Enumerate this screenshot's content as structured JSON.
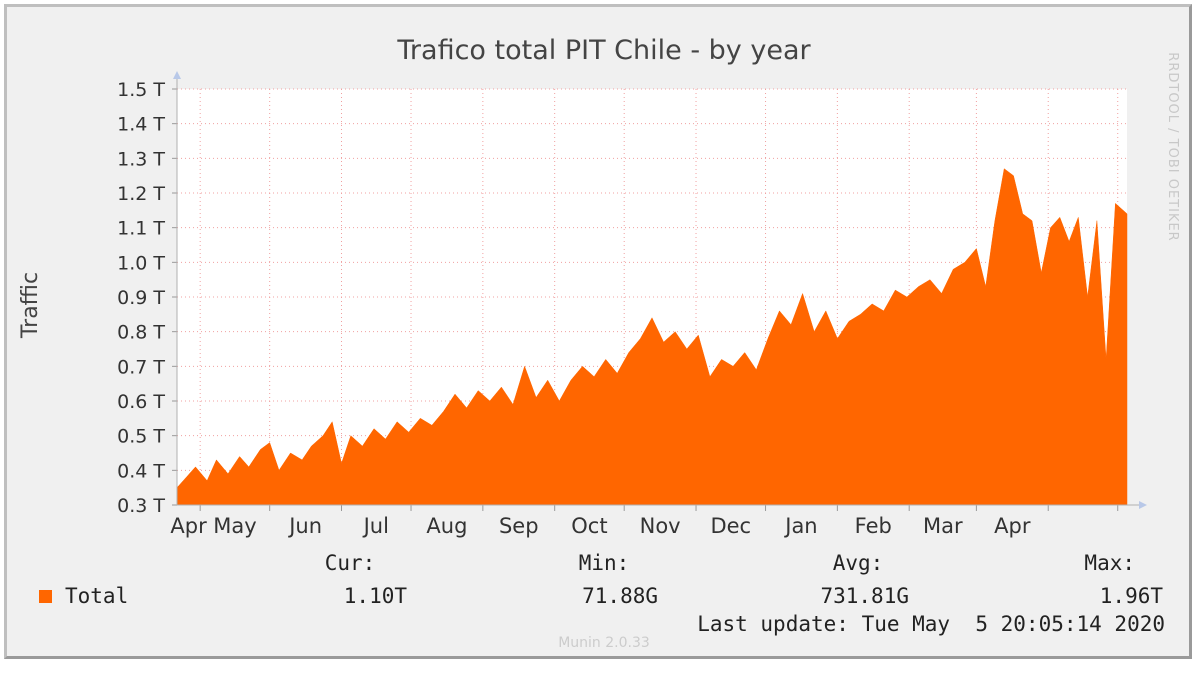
{
  "chart_data": {
    "type": "area",
    "title": "Trafico total PIT Chile - by year",
    "ylabel": "Traffic",
    "ylim": [
      0.3,
      1.5
    ],
    "y_unit": "T",
    "y_ticks": [
      "0.3 T",
      "0.4 T",
      "0.5 T",
      "0.6 T",
      "0.7 T",
      "0.8 T",
      "0.9 T",
      "1.0 T",
      "1.1 T",
      "1.2 T",
      "1.3 T",
      "1.4 T",
      "1.5 T"
    ],
    "y_tick_values": [
      0.3,
      0.4,
      0.5,
      0.6,
      0.7,
      0.8,
      0.9,
      1.0,
      1.1,
      1.2,
      1.3,
      1.4,
      1.5
    ],
    "x_ticks": [
      "Apr",
      "May",
      "Jun",
      "Jul",
      "Aug",
      "Sep",
      "Oct",
      "Nov",
      "Dec",
      "Jan",
      "Feb",
      "Mar",
      "Apr"
    ],
    "x_start": "2019-03-22",
    "x_end": "2020-05-05",
    "grid": true,
    "series": [
      {
        "name": "Total",
        "color": "#ff6600",
        "points": [
          [
            "2019-03-22",
            0.35
          ],
          [
            "2019-03-26",
            0.38
          ],
          [
            "2019-03-30",
            0.41
          ],
          [
            "2019-04-04",
            0.37
          ],
          [
            "2019-04-08",
            0.43
          ],
          [
            "2019-04-13",
            0.39
          ],
          [
            "2019-04-18",
            0.44
          ],
          [
            "2019-04-22",
            0.41
          ],
          [
            "2019-04-27",
            0.46
          ],
          [
            "2019-05-01",
            0.48
          ],
          [
            "2019-05-05",
            0.4
          ],
          [
            "2019-05-10",
            0.45
          ],
          [
            "2019-05-15",
            0.43
          ],
          [
            "2019-05-19",
            0.47
          ],
          [
            "2019-05-24",
            0.5
          ],
          [
            "2019-05-28",
            0.54
          ],
          [
            "2019-06-01",
            0.42
          ],
          [
            "2019-06-05",
            0.5
          ],
          [
            "2019-06-10",
            0.47
          ],
          [
            "2019-06-15",
            0.52
          ],
          [
            "2019-06-20",
            0.49
          ],
          [
            "2019-06-25",
            0.54
          ],
          [
            "2019-06-30",
            0.51
          ],
          [
            "2019-07-05",
            0.55
          ],
          [
            "2019-07-10",
            0.53
          ],
          [
            "2019-07-15",
            0.57
          ],
          [
            "2019-07-20",
            0.62
          ],
          [
            "2019-07-25",
            0.58
          ],
          [
            "2019-07-30",
            0.63
          ],
          [
            "2019-08-04",
            0.6
          ],
          [
            "2019-08-09",
            0.64
          ],
          [
            "2019-08-14",
            0.59
          ],
          [
            "2019-08-19",
            0.7
          ],
          [
            "2019-08-24",
            0.61
          ],
          [
            "2019-08-29",
            0.66
          ],
          [
            "2019-09-03",
            0.6
          ],
          [
            "2019-09-08",
            0.66
          ],
          [
            "2019-09-13",
            0.7
          ],
          [
            "2019-09-18",
            0.67
          ],
          [
            "2019-09-23",
            0.72
          ],
          [
            "2019-09-28",
            0.68
          ],
          [
            "2019-10-03",
            0.74
          ],
          [
            "2019-10-08",
            0.78
          ],
          [
            "2019-10-13",
            0.84
          ],
          [
            "2019-10-18",
            0.77
          ],
          [
            "2019-10-23",
            0.8
          ],
          [
            "2019-10-28",
            0.75
          ],
          [
            "2019-11-02",
            0.79
          ],
          [
            "2019-11-07",
            0.67
          ],
          [
            "2019-11-12",
            0.72
          ],
          [
            "2019-11-17",
            0.7
          ],
          [
            "2019-11-22",
            0.74
          ],
          [
            "2019-11-27",
            0.69
          ],
          [
            "2019-12-02",
            0.78
          ],
          [
            "2019-12-07",
            0.86
          ],
          [
            "2019-12-12",
            0.82
          ],
          [
            "2019-12-17",
            0.91
          ],
          [
            "2019-12-22",
            0.8
          ],
          [
            "2019-12-27",
            0.86
          ],
          [
            "2020-01-01",
            0.78
          ],
          [
            "2020-01-06",
            0.83
          ],
          [
            "2020-01-11",
            0.85
          ],
          [
            "2020-01-16",
            0.88
          ],
          [
            "2020-01-21",
            0.86
          ],
          [
            "2020-01-26",
            0.92
          ],
          [
            "2020-01-31",
            0.9
          ],
          [
            "2020-02-05",
            0.93
          ],
          [
            "2020-02-10",
            0.95
          ],
          [
            "2020-02-15",
            0.91
          ],
          [
            "2020-02-20",
            0.98
          ],
          [
            "2020-02-25",
            1.0
          ],
          [
            "2020-03-01",
            1.04
          ],
          [
            "2020-03-05",
            0.93
          ],
          [
            "2020-03-09",
            1.12
          ],
          [
            "2020-03-13",
            1.27
          ],
          [
            "2020-03-17",
            1.25
          ],
          [
            "2020-03-21",
            1.14
          ],
          [
            "2020-03-25",
            1.12
          ],
          [
            "2020-03-29",
            0.97
          ],
          [
            "2020-04-02",
            1.1
          ],
          [
            "2020-04-06",
            1.13
          ],
          [
            "2020-04-10",
            1.06
          ],
          [
            "2020-04-14",
            1.13
          ],
          [
            "2020-04-18",
            0.9
          ],
          [
            "2020-04-22",
            1.12
          ],
          [
            "2020-04-26",
            0.72
          ],
          [
            "2020-04-30",
            1.17
          ],
          [
            "2020-05-05",
            1.14
          ]
        ]
      }
    ]
  },
  "legend": {
    "headers": {
      "cur": "Cur:",
      "min": "Min:",
      "avg": "Avg:",
      "max": "Max:"
    },
    "rows": [
      {
        "name": "Total",
        "color": "#ff6600",
        "cur": "1.10T",
        "min": "71.88G",
        "avg": "731.81G",
        "max": "1.96T"
      }
    ],
    "last_update": "Last update: Tue May  5 20:05:14 2020"
  },
  "watermark": "RRDTOOL / TOBI OETIKER",
  "footer": "Munin 2.0.33"
}
